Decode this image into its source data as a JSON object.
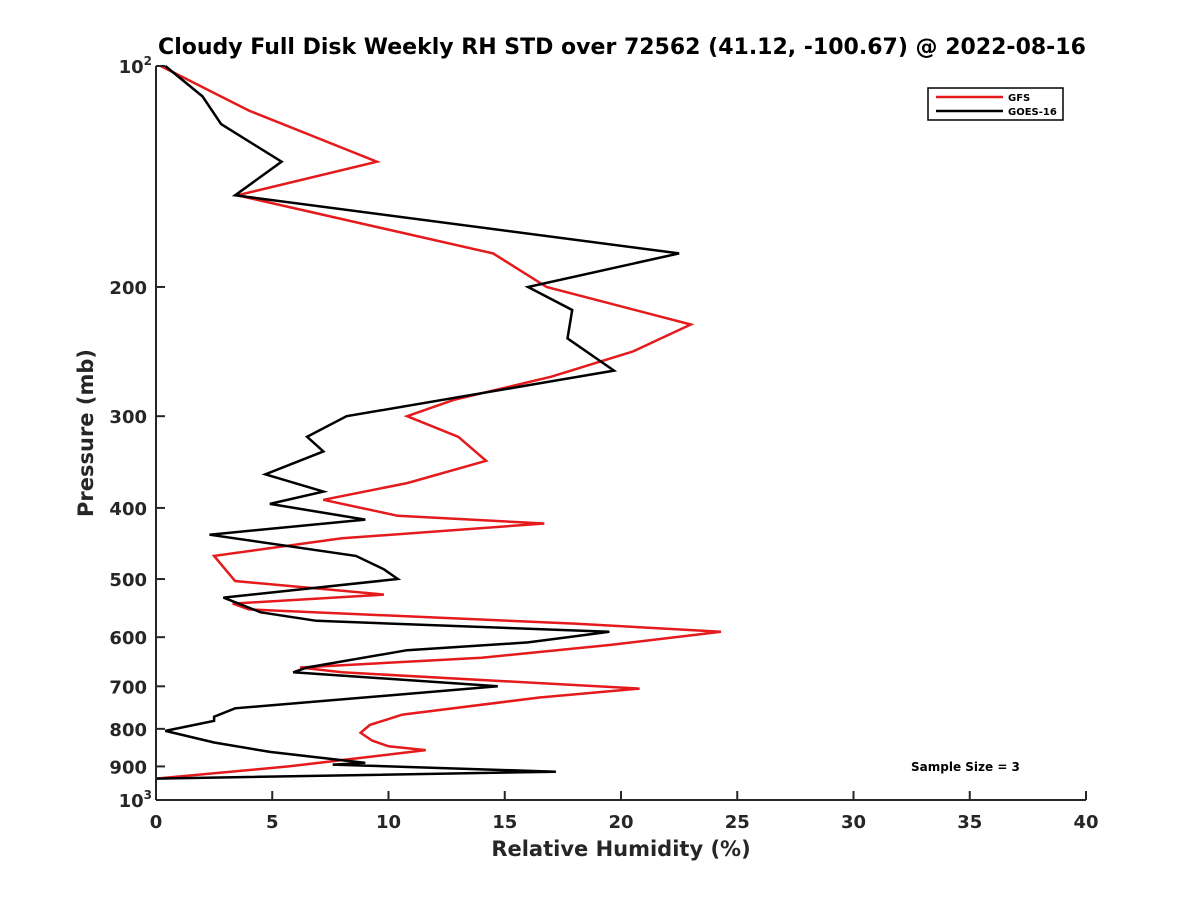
{
  "chart_data": {
    "type": "line",
    "title": "Cloudy Full Disk Weekly RH STD over 72562 (41.12, -100.67) @ 2022-08-16",
    "xlabel": "Relative Humidity (%)",
    "ylabel": "Pressure (mb)",
    "xlim": [
      0,
      40
    ],
    "ylim": [
      100,
      1000
    ],
    "y_scale": "log",
    "y_reversed": true,
    "grid": false,
    "legend_position": "top-right",
    "x_ticks": [
      0,
      5,
      10,
      15,
      20,
      25,
      30,
      35,
      40
    ],
    "x_tick_labels": [
      "0",
      "5",
      "10",
      "15",
      "20",
      "25",
      "30",
      "35",
      "40"
    ],
    "y_ticks": [
      {
        "value": 100,
        "label": "10",
        "sup": "2"
      },
      {
        "value": 200,
        "label": "200",
        "sup": ""
      },
      {
        "value": 300,
        "label": "300",
        "sup": ""
      },
      {
        "value": 400,
        "label": "400",
        "sup": ""
      },
      {
        "value": 500,
        "label": "500",
        "sup": ""
      },
      {
        "value": 600,
        "label": "600",
        "sup": ""
      },
      {
        "value": 700,
        "label": "700",
        "sup": ""
      },
      {
        "value": 800,
        "label": "800",
        "sup": ""
      },
      {
        "value": 900,
        "label": "900",
        "sup": ""
      },
      {
        "value": 1000,
        "label": "10",
        "sup": "3"
      }
    ],
    "annotation": "Sample Size = 3",
    "series": [
      {
        "name": "GFS",
        "color": "#e41a1c",
        "points": [
          [
            0.2,
            100
          ],
          [
            4.0,
            115
          ],
          [
            9.5,
            135
          ],
          [
            3.5,
            150
          ],
          [
            14.5,
            180
          ],
          [
            16.8,
            200
          ],
          [
            23.0,
            225
          ],
          [
            20.5,
            245
          ],
          [
            17.0,
            265
          ],
          [
            12.8,
            285
          ],
          [
            10.8,
            300
          ],
          [
            13.0,
            320
          ],
          [
            14.2,
            345
          ],
          [
            10.8,
            370
          ],
          [
            7.2,
            390
          ],
          [
            10.4,
            410
          ],
          [
            16.7,
            420
          ],
          [
            8.0,
            440
          ],
          [
            2.5,
            465
          ],
          [
            3.4,
            503
          ],
          [
            9.8,
            525
          ],
          [
            3.3,
            540
          ],
          [
            4.0,
            550
          ],
          [
            18.0,
            575
          ],
          [
            24.3,
            590
          ],
          [
            19.5,
            615
          ],
          [
            14.0,
            640
          ],
          [
            6.2,
            660
          ],
          [
            8.0,
            670
          ],
          [
            20.8,
            705
          ],
          [
            16.5,
            725
          ],
          [
            10.6,
            765
          ],
          [
            9.2,
            790
          ],
          [
            8.8,
            810
          ],
          [
            9.3,
            830
          ],
          [
            10.0,
            845
          ],
          [
            11.6,
            855
          ],
          [
            8.3,
            880
          ],
          [
            5.7,
            900
          ],
          [
            0.0,
            935
          ]
        ]
      },
      {
        "name": "GOES-16",
        "color": "#000000",
        "points": [
          [
            0.4,
            100
          ],
          [
            2.0,
            110
          ],
          [
            2.8,
            120
          ],
          [
            5.4,
            135
          ],
          [
            3.4,
            150
          ],
          [
            22.5,
            180
          ],
          [
            16.0,
            200
          ],
          [
            17.9,
            215
          ],
          [
            17.7,
            235
          ],
          [
            19.7,
            260
          ],
          [
            8.2,
            300
          ],
          [
            6.5,
            320
          ],
          [
            7.2,
            335
          ],
          [
            4.7,
            360
          ],
          [
            7.2,
            380
          ],
          [
            4.9,
            395
          ],
          [
            9.0,
            415
          ],
          [
            2.3,
            435
          ],
          [
            8.6,
            465
          ],
          [
            9.8,
            485
          ],
          [
            10.4,
            500
          ],
          [
            2.9,
            530
          ],
          [
            4.5,
            555
          ],
          [
            6.9,
            570
          ],
          [
            19.5,
            590
          ],
          [
            16.0,
            610
          ],
          [
            10.8,
            625
          ],
          [
            6.5,
            660
          ],
          [
            5.9,
            670
          ],
          [
            14.7,
            700
          ],
          [
            3.4,
            750
          ],
          [
            2.5,
            770
          ],
          [
            2.5,
            780
          ],
          [
            0.4,
            805
          ],
          [
            2.5,
            835
          ],
          [
            4.9,
            860
          ],
          [
            9.0,
            890
          ],
          [
            7.6,
            895
          ],
          [
            17.2,
            915
          ],
          [
            0.0,
            935
          ]
        ]
      }
    ]
  }
}
